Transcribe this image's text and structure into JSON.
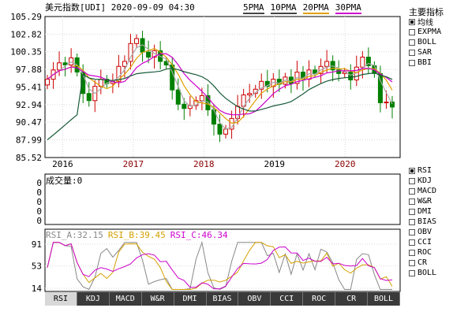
{
  "header": {
    "name": "美元指数[UDI]",
    "date": "2020-09-09",
    "time": "04:30",
    "ma_legend": [
      {
        "label": "5PMA",
        "color": "#444444"
      },
      {
        "label": "10PMA",
        "color": "#444444"
      },
      {
        "label": "20PMA",
        "color": "#e0a000"
      },
      {
        "label": "30PMA",
        "color": "#cc00cc"
      }
    ]
  },
  "main_menu": {
    "title": "主要指标",
    "items": [
      {
        "label": "均线",
        "checked": true
      },
      {
        "label": "EXPMA",
        "checked": false
      },
      {
        "label": "BOLL",
        "checked": false
      },
      {
        "label": "SAR",
        "checked": false
      },
      {
        "label": "BBI",
        "checked": false
      }
    ]
  },
  "sub_menu": {
    "items": [
      {
        "label": "RSI",
        "checked": true
      },
      {
        "label": "KDJ",
        "checked": false
      },
      {
        "label": "MACD",
        "checked": false
      },
      {
        "label": "W&R",
        "checked": false
      },
      {
        "label": "DMI",
        "checked": false
      },
      {
        "label": "BIAS",
        "checked": false
      },
      {
        "label": "OBV",
        "checked": false
      },
      {
        "label": "CCI",
        "checked": false
      },
      {
        "label": "ROC",
        "checked": false
      },
      {
        "label": "CR",
        "checked": false
      },
      {
        "label": "BOLL",
        "checked": false
      }
    ]
  },
  "volume_panel": {
    "title": "成交量:0",
    "ticks": [
      "0",
      "0",
      "0",
      "0",
      "0"
    ]
  },
  "rsi_panel": {
    "labels": [
      {
        "text": "RSI_A:32.15",
        "color": "#888888"
      },
      {
        "text": "RSI_B:39.45",
        "color": "#d4a000"
      },
      {
        "text": "RSI_C:46.34",
        "color": "#cc00cc"
      }
    ],
    "ticks": [
      "91",
      "53",
      "14"
    ],
    "ylim": [
      14,
      91
    ]
  },
  "tabs": [
    {
      "label": "RSI",
      "active": true
    },
    {
      "label": "KDJ",
      "active": false
    },
    {
      "label": "MACD",
      "active": false
    },
    {
      "label": "W&R",
      "active": false
    },
    {
      "label": "DMI",
      "active": false
    },
    {
      "label": "BIAS",
      "active": false
    },
    {
      "label": "OBV",
      "active": false
    },
    {
      "label": "CCI",
      "active": false
    },
    {
      "label": "ROC",
      "active": false
    },
    {
      "label": "CR",
      "active": false
    },
    {
      "label": "BOLL",
      "active": false
    }
  ],
  "chart_data": {
    "type": "candlestick",
    "y_ticks": [
      "105.29",
      "102.82",
      "100.35",
      "97.88",
      "95.41",
      "92.94",
      "90.47",
      "87.99",
      "85.52"
    ],
    "ylim": [
      85.52,
      105.29
    ],
    "x_ticks": [
      {
        "label": "2016",
        "t": 2016.0,
        "color": "#000000"
      },
      {
        "label": "2017",
        "t": 2017.0,
        "color": "#8b0000"
      },
      {
        "label": "2018",
        "t": 2018.0,
        "color": "#8b0000"
      },
      {
        "label": "2019",
        "t": 2019.0,
        "color": "#000000"
      },
      {
        "label": "2020",
        "t": 2020.0,
        "color": "#8b0000"
      }
    ],
    "xlim": [
      2015.75,
      2020.78
    ],
    "close": [
      96.5,
      97.8,
      98.8,
      98.5,
      99.5,
      97.5,
      94.5,
      93.5,
      95.5,
      96.5,
      95.9,
      96.2,
      98.3,
      99.0,
      101.5,
      102.2,
      100.3,
      99.6,
      100.5,
      99.0,
      98.5,
      95.0,
      93.0,
      92.4,
      92.8,
      93.5,
      94.2,
      92.2,
      90.2,
      88.8,
      89.5,
      91.0,
      92.7,
      94.3,
      94.5,
      95.1,
      96.2,
      95.5,
      96.5,
      95.8,
      96.8,
      95.9,
      97.5,
      96.5,
      97.8,
      97.3,
      98.3,
      99.0,
      97.8,
      97.3,
      97.5,
      96.4,
      98.2,
      99.6,
      98.4,
      97.3,
      93.2,
      93.3,
      92.6
    ]
  }
}
